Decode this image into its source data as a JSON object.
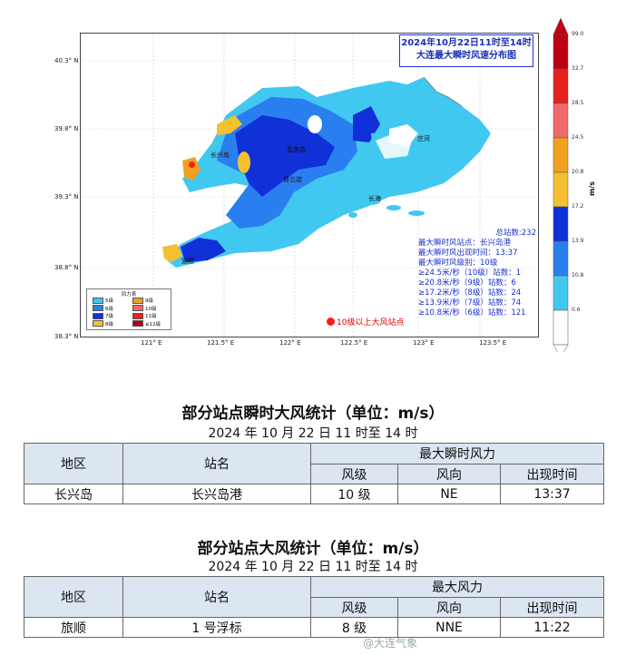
{
  "map": {
    "title_line1": "2024年10月22日11时至14时",
    "title_line2": "大连最大瞬时风速分布图",
    "lat_ticks": [
      "40.3° N",
      "39.8° N",
      "39.3° N",
      "38.8° N",
      "38.3° N"
    ],
    "lon_ticks": [
      "121° E",
      "121.5° E",
      "122° E",
      "122.5° E",
      "123° E",
      "123.5° E"
    ],
    "places": [
      "瓦房店",
      "长兴岛",
      "普兰店",
      "庄河",
      "长海",
      "旅顺"
    ],
    "stats": {
      "total": "总站数:232",
      "max_station": "最大瞬时风站点：长兴岛港",
      "max_time": "最大瞬时风出现时间：13:37",
      "max_level": "最大瞬时风级别：10级",
      "rows": [
        "≥24.5米/秒（10级）站数：1",
        "≥20.8米/秒（9级）站数：6",
        "≥17.2米/秒（8级）站数：24",
        "≥13.9米/秒（7级）站数：74",
        "≥10.8米/秒（6级）站数：121"
      ]
    },
    "legend": {
      "title": "风力表",
      "items": [
        {
          "label": "5级",
          "color": "#41c8f0"
        },
        {
          "label": "9级",
          "color": "#f2a020"
        },
        {
          "label": "6级",
          "color": "#2a7ff0"
        },
        {
          "label": "10级",
          "color": "#f06a6a"
        },
        {
          "label": "7级",
          "color": "#1030d8"
        },
        {
          "label": "11级",
          "color": "#e82020"
        },
        {
          "label": "8级",
          "color": "#f5c030"
        },
        {
          "label": "≥12级",
          "color": "#b00010"
        }
      ]
    },
    "red_note": "10级以上大风站点",
    "colorbar": {
      "unit": "m/s",
      "ticks": [
        "99.0",
        "32.7",
        "28.5",
        "24.5",
        "20.8",
        "17.2",
        "13.9",
        "10.8",
        "0.6"
      ],
      "colors": [
        "#c00010",
        "#e82020",
        "#f06a6a",
        "#f2a020",
        "#f5c030",
        "#1030d8",
        "#2a7ff0",
        "#41c8f0",
        "#ffffff"
      ]
    }
  },
  "table1": {
    "title": "部分站点瞬时大风统计（单位：m/s）",
    "subtitle": "2024 年 10 月 22 日 11 时至 14 时",
    "h_region": "地区",
    "h_station": "站名",
    "h_group": "最大瞬时风力",
    "h_level": "风级",
    "h_dir": "风向",
    "h_time": "出现时间",
    "row": {
      "region": "长兴岛",
      "station": "长兴岛港",
      "level": "10 级",
      "dir": "NE",
      "time": "13:37"
    }
  },
  "table2": {
    "title": "部分站点大风统计（单位：m/s）",
    "subtitle": "2024 年 10 月 22 日 11 时至 14 时",
    "h_region": "地区",
    "h_station": "站名",
    "h_group": "最大风力",
    "h_level": "风级",
    "h_dir": "风向",
    "h_time": "出现时间",
    "row": {
      "region": "旅顺",
      "station": "1 号浮标",
      "level": "8 级",
      "dir": "NNE",
      "time": "11:22"
    }
  },
  "watermark": "@大连气象"
}
